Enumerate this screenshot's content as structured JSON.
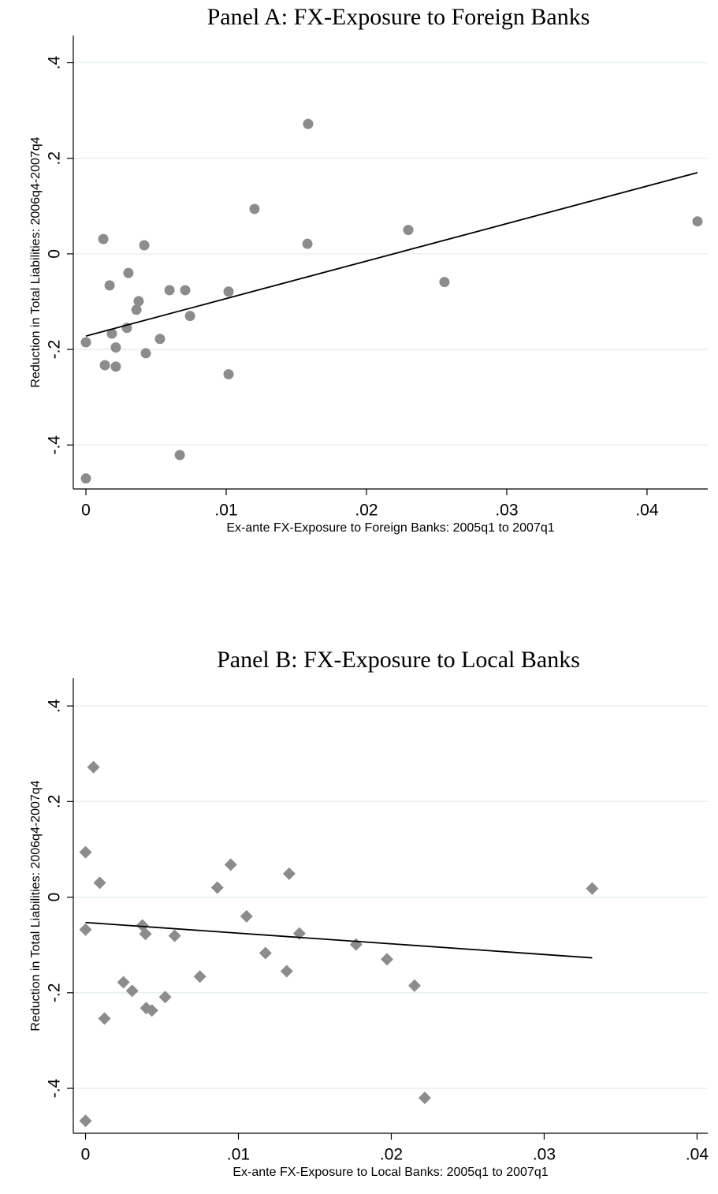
{
  "chart_data": [
    {
      "type": "scatter",
      "title": "Panel A: FX-Exposure to Foreign Banks",
      "x_label": "Ex-ante FX-Exposure to Foreign Banks: 2005q1 to 2007q1",
      "y_label": "Reduction in Total Liabilities: 2006q4-2007q4",
      "marker": "circle",
      "color": "#8c8c8c",
      "grid": true,
      "x": [
        0,
        0.00124,
        0.00169,
        0.00135,
        0.00185,
        0.00213,
        0.00213,
        0.00303,
        0.00292,
        0.0036,
        0.00376,
        0.00416,
        0.00427,
        0.00528,
        0.00596,
        0.00669,
        0.00708,
        0.00742,
        0.01017,
        0.01017,
        0.01202,
        0.01584,
        0.01579,
        0.02298,
        0.02556,
        0.0436,
        0
      ],
      "values": [
        -0.185,
        0.031,
        -0.066,
        -0.233,
        -0.167,
        -0.196,
        -0.236,
        -0.04,
        -0.155,
        -0.117,
        -0.099,
        0.018,
        -0.208,
        -0.178,
        -0.076,
        -0.421,
        -0.076,
        -0.13,
        -0.079,
        -0.252,
        0.094,
        0.272,
        0.021,
        0.05,
        -0.059,
        0.068,
        -0.47
      ],
      "fit": {
        "x": [
          0,
          0.0436
        ],
        "values": [
          -0.172,
          0.17
        ]
      },
      "xlim": [
        -0.0009,
        0.04433
      ],
      "ylim": [
        -0.492,
        0.457
      ],
      "xticks": [
        0,
        {
          "value": 0.01,
          "label": ".01"
        },
        {
          "value": 0.02,
          "label": ".02"
        },
        {
          "value": 0.03,
          "label": ".03"
        },
        {
          "value": 0.04,
          "label": ".04"
        }
      ],
      "yticks": [
        {
          "value": -0.4,
          "label": "-.4"
        },
        {
          "value": -0.2,
          "label": "-.2"
        },
        0,
        {
          "value": 0.2,
          "label": ".2"
        },
        {
          "value": 0.4,
          "label": ".4"
        }
      ]
    },
    {
      "type": "scatter",
      "title": "Panel B: FX-Exposure to Local Banks",
      "x_label": "Ex-ante FX-Exposure to Local Banks: 2005q1 to 2007q1",
      "y_label": "Reduction in Total Liabilities: 2006q4-2007q4",
      "marker": "diamond",
      "color": "#8c8c8c",
      "grid": true,
      "x": [
        0,
        0.00052,
        0.00093,
        0,
        0.00124,
        0.00248,
        0.00305,
        0.00372,
        0.00392,
        0.00397,
        0.00434,
        0.00521,
        0.00583,
        0.00748,
        0.00862,
        0.0095,
        0.01053,
        0.01177,
        0.01316,
        0.01332,
        0.01399,
        0.0177,
        0.01972,
        0.02152,
        0.02219,
        0.03314,
        0
      ],
      "values": [
        0.094,
        0.272,
        0.03,
        -0.068,
        -0.254,
        -0.178,
        -0.196,
        -0.059,
        -0.077,
        -0.232,
        -0.237,
        -0.209,
        -0.081,
        -0.166,
        0.02,
        0.068,
        -0.04,
        -0.117,
        -0.155,
        0.049,
        -0.076,
        -0.099,
        -0.13,
        -0.185,
        -0.42,
        0.018,
        -0.468
      ],
      "fit": {
        "x": [
          0,
          0.03314
        ],
        "values": [
          -0.053,
          -0.127
        ]
      },
      "xlim": [
        -0.0008,
        0.0407
      ],
      "ylim": [
        -0.494,
        0.458
      ],
      "xticks": [
        0,
        {
          "value": 0.01,
          "label": ".01"
        },
        {
          "value": 0.02,
          "label": ".02"
        },
        {
          "value": 0.03,
          "label": ".03"
        },
        {
          "value": 0.04,
          "label": ".04"
        }
      ],
      "yticks": [
        {
          "value": -0.4,
          "label": "-.4"
        },
        {
          "value": -0.2,
          "label": "-.2"
        },
        0,
        {
          "value": 0.2,
          "label": ".2"
        },
        {
          "value": 0.4,
          "label": ".4"
        }
      ]
    }
  ]
}
